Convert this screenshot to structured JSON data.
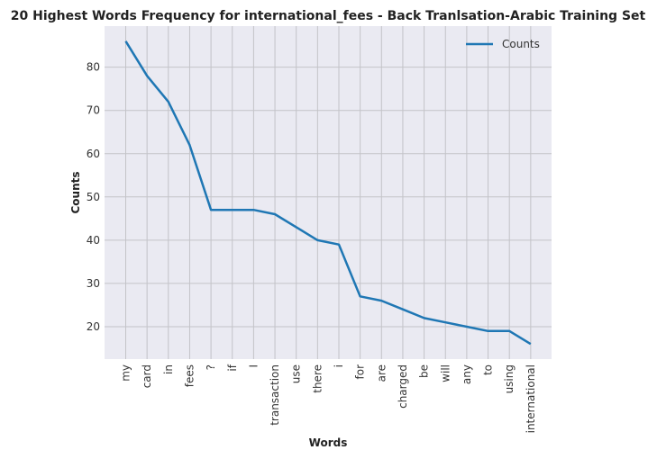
{
  "chart_data": {
    "type": "line",
    "title": "20 Highest Words Frequency for international_fees - Back Tranlsation-Arabic Training Set",
    "xlabel": "Words",
    "ylabel": "Counts",
    "categories": [
      "my",
      "card",
      "in",
      "fees",
      "?",
      "if",
      "I",
      "transaction",
      "use",
      "there",
      "i",
      "for",
      "are",
      "charged",
      "be",
      "will",
      "any",
      "to",
      "using",
      "international"
    ],
    "series": [
      {
        "name": "Counts",
        "values": [
          86,
          78,
          72,
          62,
          47,
          47,
          47,
          46,
          43,
          40,
          39,
          27,
          26,
          24,
          22,
          21,
          20,
          19,
          19,
          16
        ],
        "color": "#1f77b4"
      }
    ],
    "yticks": [
      20,
      30,
      40,
      50,
      60,
      70,
      80
    ],
    "ylim": [
      12.5,
      89.5
    ],
    "grid": true,
    "legend": "top-right",
    "plot_bg": "#eaeaf2"
  }
}
